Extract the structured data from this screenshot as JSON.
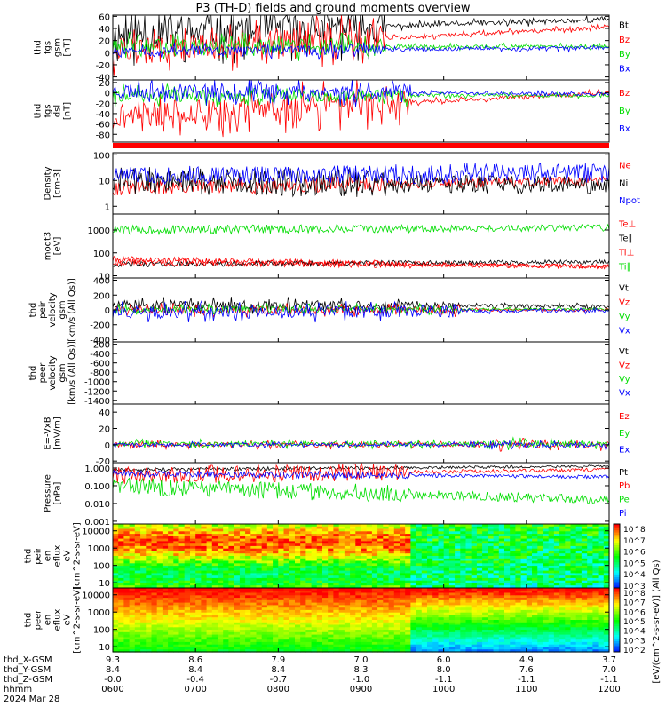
{
  "title": "P3 (TH-D) fields and ground moments overview",
  "date_label": "2024 Mar 28",
  "colors": {
    "black": "#000000",
    "red": "#ff0000",
    "green": "#00dd00",
    "blue": "#0000ff"
  },
  "x_axis": {
    "time_ticks": [
      "0600",
      "0700",
      "0800",
      "0900",
      "1000",
      "1100",
      "1200"
    ],
    "rows": [
      {
        "label": "thd_X-GSM",
        "values": [
          "9.3",
          "8.6",
          "7.9",
          "7.0",
          "6.0",
          "4.9",
          "3.7"
        ]
      },
      {
        "label": "thd_Y-GSM",
        "values": [
          "8.4",
          "8.4",
          "8.4",
          "8.3",
          "8.0",
          "7.6",
          "7.0"
        ]
      },
      {
        "label": "thd_Z-GSM",
        "values": [
          "-0.0",
          "-0.4",
          "-0.7",
          "-1.0",
          "-1.1",
          "-1.1",
          "-1.1"
        ]
      },
      {
        "label": "hhmm",
        "values": [
          "0600",
          "0700",
          "0800",
          "0900",
          "1000",
          "1100",
          "1200"
        ]
      }
    ]
  },
  "colorbar_label": "[eV/(cm^2-s-sr-eV)] (All Qs)",
  "chart_data": [
    {
      "type": "line",
      "ylabel": [
        "thd",
        "fgs",
        "gsm",
        "[nT]"
      ],
      "yticks": [
        "60",
        "40",
        "20",
        "0",
        "-20",
        "-40"
      ],
      "ylim": [
        -45,
        62
      ],
      "scale": "linear",
      "series": [
        {
          "name": "Bt",
          "color": "black"
        },
        {
          "name": "Bz",
          "color": "red"
        },
        {
          "name": "By",
          "color": "green"
        },
        {
          "name": "Bx",
          "color": "blue"
        }
      ]
    },
    {
      "type": "line",
      "ylabel": [
        "thd",
        "fgs",
        "dsl",
        "[nT]"
      ],
      "yticks": [
        "20",
        "0",
        "-20",
        "-40",
        "-60",
        "-80"
      ],
      "ylim": [
        -95,
        25
      ],
      "scale": "linear",
      "series": [
        {
          "name": "Bz",
          "color": "red"
        },
        {
          "name": "By",
          "color": "green"
        },
        {
          "name": "Bx",
          "color": "blue"
        }
      ]
    },
    {
      "type": "line",
      "ylabel": [
        "Density",
        "[cm-3]"
      ],
      "yticks": [
        "100",
        "10",
        "1"
      ],
      "ylim": [
        0.5,
        120
      ],
      "scale": "log",
      "series": [
        {
          "name": "Ne",
          "color": "red"
        },
        {
          "name": "Ni",
          "color": "black"
        },
        {
          "name": "Npot",
          "color": "blue"
        }
      ]
    },
    {
      "type": "line",
      "ylabel": [
        "moqt3",
        "[eV]"
      ],
      "yticks": [
        "1000",
        "100",
        "10"
      ],
      "ylim": [
        8,
        5000
      ],
      "scale": "log",
      "series": [
        {
          "name": "Te⊥",
          "color": "red"
        },
        {
          "name": "Te∥",
          "color": "black"
        },
        {
          "name": "Ti⊥",
          "color": "red"
        },
        {
          "name": "Ti∥",
          "color": "green"
        }
      ]
    },
    {
      "type": "line",
      "ylabel": [
        "thd",
        "peir",
        "velocity",
        "gsm",
        "[km/s (All Qs)]"
      ],
      "yticks": [
        "400",
        "200",
        "0",
        "-200",
        "-400"
      ],
      "ylim": [
        -430,
        430
      ],
      "scale": "linear",
      "series": [
        {
          "name": "Vt",
          "color": "black"
        },
        {
          "name": "Vz",
          "color": "red"
        },
        {
          "name": "Vy",
          "color": "green"
        },
        {
          "name": "Vx",
          "color": "blue"
        }
      ]
    },
    {
      "type": "line",
      "ylabel": [
        "thd",
        "peer",
        "velocity",
        "gsm",
        "[km/s (All Qs)]"
      ],
      "yticks": [
        "-200",
        "-400",
        "-600",
        "-800",
        "-1000",
        "-1200",
        "-1400"
      ],
      "ylim": [
        -1480,
        -150
      ],
      "scale": "linear",
      "series": [
        {
          "name": "Vt",
          "color": "black"
        },
        {
          "name": "Vz",
          "color": "red"
        },
        {
          "name": "Vy",
          "color": "green"
        },
        {
          "name": "Vx",
          "color": "blue"
        }
      ]
    },
    {
      "type": "line",
      "ylabel": [
        "E=-VxB",
        "[mV/m]"
      ],
      "yticks": [
        "40",
        "20",
        "0",
        "-20"
      ],
      "ylim": [
        -22,
        50
      ],
      "scale": "linear",
      "series": [
        {
          "name": "Ez",
          "color": "red"
        },
        {
          "name": "Ey",
          "color": "green"
        },
        {
          "name": "Ex",
          "color": "blue"
        }
      ]
    },
    {
      "type": "line",
      "ylabel": [
        "Pressure",
        "[nPa]"
      ],
      "yticks": [
        "1.000",
        "0.100",
        "0.010",
        "0.001"
      ],
      "ylim": [
        0.0007,
        2
      ],
      "scale": "log",
      "series": [
        {
          "name": "Pt",
          "color": "black"
        },
        {
          "name": "Pb",
          "color": "red"
        },
        {
          "name": "Pe",
          "color": "green"
        },
        {
          "name": "Pi",
          "color": "blue"
        }
      ]
    },
    {
      "type": "heatmap",
      "ylabel": [
        "thd",
        "peir",
        "en",
        "eflux",
        "eV",
        "[cm^2-s-sr-eV]"
      ],
      "yticks": [
        "10000",
        "1000",
        "100",
        "10"
      ],
      "ylim": [
        5,
        25000
      ],
      "scale": "log",
      "colorbar_ticks": [
        "10^8",
        "10^7",
        "10^6",
        "10^5",
        "10^4",
        "10^3"
      ],
      "series": []
    },
    {
      "type": "heatmap",
      "ylabel": [
        "thd",
        "peer",
        "en",
        "eflux",
        "eV",
        "[cm^2-s-sr-eV]"
      ],
      "yticks": [
        "10000",
        "1000",
        "100",
        "10"
      ],
      "ylim": [
        5,
        25000
      ],
      "scale": "log",
      "colorbar_ticks": [
        "10^8",
        "10^7",
        "10^6",
        "10^5",
        "10^4",
        "10^3",
        "10^2"
      ],
      "series": []
    }
  ]
}
